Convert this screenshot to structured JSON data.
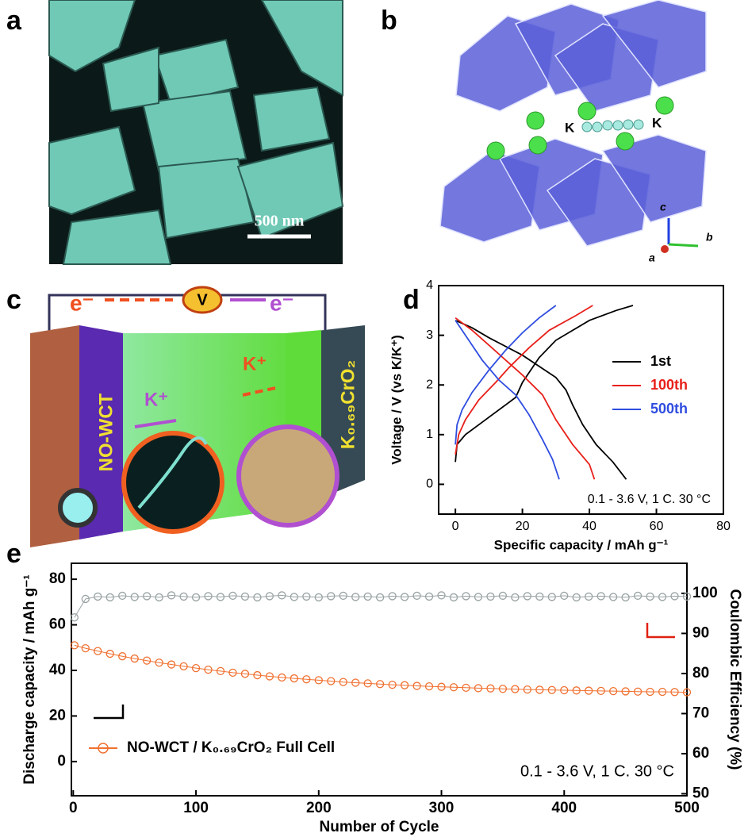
{
  "panels": {
    "a": {
      "label": "a",
      "scale_bar": "500 nm"
    },
    "b": {
      "label": "b",
      "atom_labels": [
        "K",
        "K"
      ],
      "axes": [
        "c",
        "b",
        "a"
      ]
    },
    "c": {
      "label": "c",
      "electron_left": "e⁻",
      "voltmeter": "V",
      "electron_right": "e⁻",
      "ion_left": "K⁺",
      "ion_right": "K⁺",
      "anode": "NO-WCT",
      "cathode": "K₀.₆₉CrO₂"
    },
    "d": {
      "label": "d"
    },
    "e": {
      "label": "e"
    }
  },
  "chart_data": [
    {
      "type": "line",
      "xlabel": "Specific capacity / mAh g⁻¹",
      "ylabel": "Voltage / V (vs K/K⁺)",
      "annotation": "0.1 - 3.6 V, 1 C. 30 °C",
      "xlim": [
        -5,
        80
      ],
      "xticks": [
        0,
        20,
        40,
        60,
        80
      ],
      "ylim": [
        -0.6,
        4
      ],
      "yticks": [
        0,
        1,
        2,
        3,
        4
      ],
      "legend": "center right",
      "series": [
        {
          "name": "1st",
          "color": "#000000",
          "x": [
            0,
            5,
            10,
            20,
            30,
            33,
            35,
            38,
            42,
            47,
            51,
            null,
            0,
            0.5,
            3,
            8,
            15,
            18,
            20,
            25,
            30,
            40,
            48,
            53
          ],
          "values": [
            3.3,
            3.15,
            2.95,
            2.6,
            2.15,
            1.9,
            1.6,
            1.2,
            0.8,
            0.45,
            0.1,
            null,
            0.45,
            0.8,
            1.0,
            1.25,
            1.6,
            1.75,
            2.05,
            2.55,
            2.9,
            3.3,
            3.5,
            3.6
          ]
        },
        {
          "name": "100th",
          "color": "#e8201a",
          "x": [
            0,
            5,
            10,
            15,
            20,
            26,
            30,
            35,
            40,
            41.5,
            null,
            0,
            1,
            3,
            7,
            12,
            16,
            22,
            28,
            36,
            41
          ],
          "values": [
            3.35,
            3.1,
            2.8,
            2.5,
            2.2,
            1.8,
            1.3,
            0.8,
            0.4,
            0.1,
            null,
            0.6,
            1.0,
            1.3,
            1.7,
            2.05,
            2.35,
            2.75,
            3.1,
            3.4,
            3.6
          ]
        },
        {
          "name": "500th",
          "color": "#2f4de0",
          "x": [
            0,
            4,
            8,
            13,
            18,
            22,
            26,
            29,
            31,
            null,
            0,
            0.5,
            2,
            5,
            10,
            15,
            20,
            25,
            30
          ],
          "values": [
            3.3,
            2.9,
            2.5,
            2.1,
            1.8,
            1.4,
            0.9,
            0.5,
            0.1,
            null,
            0.8,
            1.2,
            1.5,
            1.85,
            2.3,
            2.7,
            3.05,
            3.35,
            3.6
          ]
        }
      ]
    },
    {
      "type": "line",
      "xlabel": "Number of Cycle",
      "ylabel": "Discharge capacity / mAh g⁻¹",
      "y2label": "Coulombic Efficiency (%)",
      "annotation": "0.1 - 3.6 V, 1 C. 30 °C",
      "xlim": [
        -1.5,
        500
      ],
      "xticks": [
        0,
        100,
        200,
        300,
        400,
        500
      ],
      "ylim": [
        -15,
        87
      ],
      "yticks": [
        0,
        20,
        40,
        60,
        80
      ],
      "y2lim": [
        49.5,
        107.5
      ],
      "y2ticks": [
        50,
        60,
        70,
        80,
        90,
        100
      ],
      "legend": "lower left",
      "x": [
        1,
        10,
        20,
        30,
        40,
        50,
        60,
        70,
        80,
        90,
        100,
        110,
        120,
        130,
        140,
        150,
        160,
        170,
        180,
        190,
        200,
        210,
        220,
        230,
        240,
        250,
        260,
        270,
        280,
        290,
        300,
        310,
        320,
        330,
        340,
        350,
        360,
        370,
        380,
        390,
        400,
        410,
        420,
        430,
        440,
        450,
        460,
        470,
        480,
        490,
        500
      ],
      "series": [
        {
          "name": "NO-WCT / K₀.₆₉CrO₂ Full Cell",
          "color": "#f07030",
          "marker": "circle",
          "values": [
            51.0,
            49.7,
            48.5,
            47.3,
            46.2,
            45.2,
            44.3,
            43.4,
            42.6,
            41.8,
            41.0,
            40.3,
            39.7,
            39.0,
            38.5,
            37.9,
            37.4,
            36.9,
            36.5,
            36.1,
            35.7,
            35.3,
            34.9,
            34.6,
            34.3,
            34.0,
            33.7,
            33.5,
            33.2,
            33.0,
            32.8,
            32.6,
            32.4,
            32.2,
            32.1,
            31.9,
            31.8,
            31.6,
            31.5,
            31.4,
            31.3,
            31.2,
            31.1,
            31.0,
            30.9,
            30.8,
            30.7,
            30.6,
            30.6,
            30.5,
            30.4
          ]
        },
        {
          "color": "#9aa3a3",
          "marker": "circle",
          "axis": "y2",
          "values": [
            94.0,
            98.6,
            99.2,
            99.0,
            99.4,
            99.1,
            99.3,
            99.0,
            99.5,
            99.2,
            99.0,
            99.3,
            99.1,
            99.4,
            99.2,
            99.0,
            99.3,
            99.5,
            99.1,
            99.2,
            99.0,
            99.3,
            99.4,
            99.1,
            99.2,
            99.0,
            99.3,
            99.1,
            99.4,
            99.2,
            99.5,
            99.0,
            99.3,
            99.1,
            99.2,
            99.4,
            99.0,
            99.3,
            99.2,
            99.1,
            99.4,
            99.0,
            99.2,
            99.3,
            99.1,
            99.0,
            99.4,
            99.2,
            99.1,
            99.3,
            99.2
          ]
        }
      ]
    }
  ]
}
